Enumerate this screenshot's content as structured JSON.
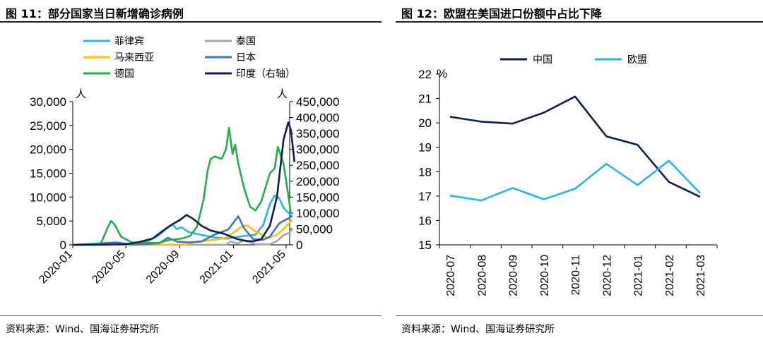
{
  "left": {
    "title": "图 11：部分国家当日新增确诊病例",
    "source": "资料来源：Wind、国海证券研究所",
    "chart_data": {
      "type": "line",
      "x_tick_labels": [
        "2020-01",
        "2020-05",
        "2020-09",
        "2021-01",
        "2021-05"
      ],
      "x_range": [
        "2020-01",
        "2021-05"
      ],
      "y_left": {
        "unit": "人",
        "ylim": [
          0,
          30000
        ],
        "ticks": [
          "0",
          "5,000",
          "10,000",
          "15,000",
          "20,000",
          "25,000",
          "30,000"
        ]
      },
      "y_right": {
        "unit": "人",
        "ylim": [
          0,
          450000
        ],
        "ticks": [
          "0",
          "50,000",
          "100,000",
          "150,000",
          "200,000",
          "250,000",
          "300,000",
          "350,000",
          "400,000",
          "450,000"
        ]
      },
      "legend_placement": "top-left",
      "series": [
        {
          "name": "菲律宾",
          "color": "#29B5E8",
          "axis": "left",
          "points": [
            [
              "2020-01-01",
              0
            ],
            [
              "2020-03-15",
              30
            ],
            [
              "2020-04-15",
              250
            ],
            [
              "2020-05-20",
              300
            ],
            [
              "2020-06-20",
              800
            ],
            [
              "2020-07-15",
              2000
            ],
            [
              "2020-08-05",
              3700
            ],
            [
              "2020-08-15",
              4300
            ],
            [
              "2020-08-25",
              3300
            ],
            [
              "2020-09-05",
              3700
            ],
            [
              "2020-09-20",
              2700
            ],
            [
              "2020-10-15",
              2200
            ],
            [
              "2020-11-15",
              1600
            ],
            [
              "2020-12-15",
              1300
            ],
            [
              "2021-01-20",
              1800
            ],
            [
              "2021-02-20",
              2100
            ],
            [
              "2021-03-10",
              4200
            ],
            [
              "2021-03-25",
              8500
            ],
            [
              "2021-04-05",
              10300
            ],
            [
              "2021-04-15",
              9800
            ],
            [
              "2021-04-25",
              7800
            ],
            [
              "2021-05-05",
              6800
            ],
            [
              "2021-05-15",
              5900
            ]
          ]
        },
        {
          "name": "泰国",
          "color": "#A6A6A6",
          "axis": "left",
          "points": [
            [
              "2020-01-01",
              0
            ],
            [
              "2020-03-25",
              150
            ],
            [
              "2020-04-20",
              50
            ],
            [
              "2020-06-01",
              10
            ],
            [
              "2020-12-15",
              10
            ],
            [
              "2020-12-25",
              700
            ],
            [
              "2021-01-10",
              300
            ],
            [
              "2021-01-25",
              900
            ],
            [
              "2021-02-20",
              150
            ],
            [
              "2021-03-25",
              100
            ],
            [
              "2021-04-10",
              800
            ],
            [
              "2021-04-25",
              2000
            ],
            [
              "2021-05-10",
              2600
            ],
            [
              "2021-05-15",
              3500
            ]
          ]
        },
        {
          "name": "马来西亚",
          "color": "#FFC000",
          "axis": "left",
          "points": [
            [
              "2020-01-01",
              0
            ],
            [
              "2020-03-20",
              180
            ],
            [
              "2020-04-20",
              80
            ],
            [
              "2020-06-01",
              20
            ],
            [
              "2020-09-15",
              50
            ],
            [
              "2020-10-10",
              700
            ],
            [
              "2020-11-15",
              1000
            ],
            [
              "2020-12-15",
              1500
            ],
            [
              "2021-01-10",
              3100
            ],
            [
              "2021-01-20",
              3800
            ],
            [
              "2021-02-01",
              4100
            ],
            [
              "2021-02-15",
              3100
            ],
            [
              "2021-03-05",
              2200
            ],
            [
              "2021-03-20",
              1400
            ],
            [
              "2021-04-10",
              2100
            ],
            [
              "2021-04-25",
              3300
            ],
            [
              "2021-05-05",
              4300
            ],
            [
              "2021-05-15",
              5300
            ]
          ]
        },
        {
          "name": "日本",
          "color": "#4472C4",
          "axis": "left",
          "points": [
            [
              "2020-01-01",
              0
            ],
            [
              "2020-04-10",
              500
            ],
            [
              "2020-05-15",
              50
            ],
            [
              "2020-07-15",
              300
            ],
            [
              "2020-08-05",
              1500
            ],
            [
              "2020-08-25",
              700
            ],
            [
              "2020-09-20",
              500
            ],
            [
              "2020-10-20",
              700
            ],
            [
              "2020-11-20",
              2200
            ],
            [
              "2020-12-20",
              3200
            ],
            [
              "2021-01-08",
              5500
            ],
            [
              "2021-01-12",
              6000
            ],
            [
              "2021-01-25",
              3500
            ],
            [
              "2021-02-15",
              1200
            ],
            [
              "2021-03-10",
              1100
            ],
            [
              "2021-03-25",
              1700
            ],
            [
              "2021-04-15",
              4500
            ],
            [
              "2021-05-05",
              5500
            ],
            [
              "2021-05-15",
              6000
            ]
          ]
        },
        {
          "name": "德国",
          "color": "#22B04B",
          "axis": "left",
          "points": [
            [
              "2020-01-01",
              0
            ],
            [
              "2020-03-05",
              300
            ],
            [
              "2020-03-20",
              3500
            ],
            [
              "2020-03-28",
              5000
            ],
            [
              "2020-04-05",
              4300
            ],
            [
              "2020-04-20",
              1700
            ],
            [
              "2020-05-15",
              500
            ],
            [
              "2020-07-15",
              400
            ],
            [
              "2020-08-10",
              1100
            ],
            [
              "2020-09-05",
              1300
            ],
            [
              "2020-09-25",
              1900
            ],
            [
              "2020-10-10",
              3800
            ],
            [
              "2020-10-25",
              9500
            ],
            [
              "2020-11-03",
              15500
            ],
            [
              "2020-11-10",
              18000
            ],
            [
              "2020-11-20",
              18500
            ],
            [
              "2020-12-05",
              18000
            ],
            [
              "2020-12-15",
              20000
            ],
            [
              "2020-12-22",
              24500
            ],
            [
              "2020-12-30",
              19000
            ],
            [
              "2021-01-05",
              21000
            ],
            [
              "2021-01-12",
              17000
            ],
            [
              "2021-01-25",
              12000
            ],
            [
              "2021-02-08",
              8000
            ],
            [
              "2021-02-20",
              7200
            ],
            [
              "2021-03-05",
              9000
            ],
            [
              "2021-03-15",
              12000
            ],
            [
              "2021-03-25",
              15000
            ],
            [
              "2021-04-05",
              16000
            ],
            [
              "2021-04-12",
              20500
            ],
            [
              "2021-04-18",
              19000
            ],
            [
              "2021-04-25",
              17000
            ],
            [
              "2021-05-05",
              11000
            ],
            [
              "2021-05-12",
              6500
            ]
          ]
        },
        {
          "name": "印度（右轴）",
          "color": "#0C1F4D",
          "axis": "right",
          "points": [
            [
              "2020-01-01",
              0
            ],
            [
              "2020-04-01",
              1000
            ],
            [
              "2020-05-01",
              2000
            ],
            [
              "2020-06-01",
              9000
            ],
            [
              "2020-07-01",
              20000
            ],
            [
              "2020-07-25",
              45000
            ],
            [
              "2020-08-15",
              65000
            ],
            [
              "2020-09-01",
              78000
            ],
            [
              "2020-09-16",
              94000
            ],
            [
              "2020-10-01",
              82000
            ],
            [
              "2020-10-20",
              60000
            ],
            [
              "2020-11-10",
              45000
            ],
            [
              "2020-12-10",
              35000
            ],
            [
              "2021-01-10",
              18000
            ],
            [
              "2021-02-01",
              12000
            ],
            [
              "2021-02-15",
              11000
            ],
            [
              "2021-03-05",
              17000
            ],
            [
              "2021-03-25",
              60000
            ],
            [
              "2021-04-10",
              150000
            ],
            [
              "2021-04-25",
              330000
            ],
            [
              "2021-05-06",
              385000
            ],
            [
              "2021-05-12",
              360000
            ],
            [
              "2021-05-20",
              260000
            ]
          ]
        }
      ]
    }
  },
  "right": {
    "title": "图 12：欧盟在美国进口份额中占比下降",
    "source": "资料来源：Wind、国海证券研究所",
    "chart_data": {
      "type": "line",
      "categories": [
        "2020-07",
        "2020-08",
        "2020-09",
        "2020-10",
        "2020-11",
        "2020-12",
        "2021-01",
        "2021-02",
        "2021-03"
      ],
      "y_unit": "%",
      "ylim": [
        15,
        22
      ],
      "y_ticks": [
        "15",
        "16",
        "17",
        "18",
        "19",
        "20",
        "21",
        "22"
      ],
      "legend_placement": "top",
      "series": [
        {
          "name": "中国",
          "color": "#0C1F4D",
          "values": [
            20.25,
            20.05,
            19.97,
            20.42,
            21.08,
            19.45,
            19.1,
            17.58,
            16.97
          ]
        },
        {
          "name": "欧盟",
          "color": "#29B5E8",
          "values": [
            17.02,
            16.82,
            17.33,
            16.87,
            17.3,
            18.32,
            17.45,
            18.45,
            17.12
          ]
        }
      ]
    }
  }
}
